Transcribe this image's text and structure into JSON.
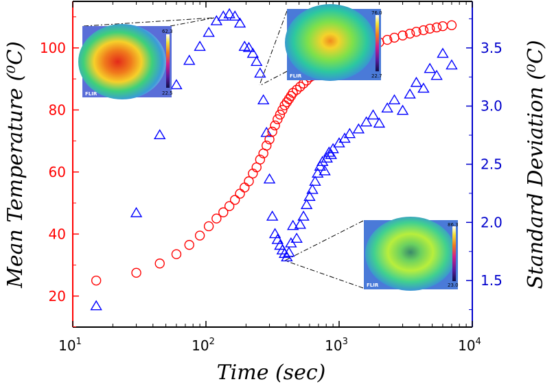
{
  "chart_data": {
    "type": "scatter",
    "xlabel": "Time (sec)",
    "ylabel_left": "Mean Temperature (⁰C)",
    "ylabel_right": "Standard Deviation (⁰C)",
    "x_scale": "log",
    "xlim": [
      10,
      10000
    ],
    "ylim_left": [
      10,
      115
    ],
    "ylim_right": [
      1.1,
      3.9
    ],
    "x_ticks": [
      {
        "value": 10,
        "base": "10",
        "exp": "1"
      },
      {
        "value": 100,
        "base": "10",
        "exp": "2"
      },
      {
        "value": 1000,
        "base": "10",
        "exp": "3"
      },
      {
        "value": 10000,
        "base": "10",
        "exp": "4"
      }
    ],
    "y_left_ticks": [
      "20",
      "40",
      "60",
      "80",
      "100"
    ],
    "y_right_ticks": [
      "1.5",
      "2.0",
      "2.5",
      "3.0",
      "3.5"
    ],
    "grid": false,
    "colors": {
      "left_axis": "#ff0000",
      "right_axis": "#0000cc",
      "series_mean": "#ff0000",
      "series_std": "#0000ff"
    },
    "series": [
      {
        "axis": "left",
        "marker": "circle",
        "x": [
          15,
          30,
          45,
          60,
          75,
          90,
          105,
          120,
          135,
          150,
          165,
          180,
          195,
          210,
          225,
          240,
          255,
          270,
          285,
          300,
          315,
          330,
          345,
          360,
          375,
          390,
          405,
          420,
          435,
          450,
          480,
          510,
          540,
          570,
          600,
          630,
          660,
          690,
          720,
          750,
          780,
          810,
          840,
          870,
          900,
          1000,
          1100,
          1200,
          1400,
          1600,
          1800,
          2000,
          2300,
          2600,
          3000,
          3400,
          3800,
          4300,
          4800,
          5400,
          6000,
          7000
        ],
        "y": [
          25,
          27.5,
          30.5,
          33.5,
          36.5,
          39.5,
          42.5,
          45,
          47,
          49,
          51,
          53,
          55,
          57,
          59.5,
          61.5,
          64,
          66,
          68.5,
          70.5,
          73,
          75,
          77,
          78.5,
          80,
          81.5,
          82.5,
          83.5,
          84.5,
          85.5,
          86.5,
          87.5,
          88.5,
          89.5,
          90.5,
          91,
          91.5,
          92.3,
          92.8,
          93.3,
          93.8,
          94.3,
          94.8,
          95.3,
          95.8,
          96.6,
          97.3,
          98,
          99,
          100,
          101,
          101.8,
          102.6,
          103.3,
          104,
          104.6,
          105.2,
          105.7,
          106.2,
          106.6,
          107,
          107.3
        ]
      },
      {
        "axis": "right",
        "marker": "triangle",
        "x": [
          15,
          30,
          45,
          60,
          75,
          90,
          105,
          120,
          135,
          150,
          165,
          180,
          195,
          210,
          225,
          240,
          255,
          270,
          285,
          300,
          315,
          330,
          345,
          360,
          375,
          390,
          405,
          420,
          435,
          450,
          480,
          510,
          540,
          570,
          600,
          630,
          660,
          690,
          720,
          750,
          780,
          810,
          840,
          870,
          900,
          1000,
          1100,
          1200,
          1400,
          1600,
          1800,
          2000,
          2300,
          2600,
          3000,
          3400,
          3800,
          4300,
          4800,
          5400,
          6000,
          7000
        ],
        "y": [
          1.28,
          2.08,
          2.75,
          3.18,
          3.39,
          3.51,
          3.63,
          3.73,
          3.77,
          3.79,
          3.77,
          3.71,
          3.51,
          3.5,
          3.45,
          3.38,
          3.28,
          3.05,
          2.77,
          2.37,
          2.05,
          1.9,
          1.85,
          1.8,
          1.76,
          1.73,
          1.7,
          1.74,
          1.82,
          1.97,
          1.86,
          1.98,
          2.05,
          2.15,
          2.22,
          2.28,
          2.35,
          2.42,
          2.48,
          2.52,
          2.44,
          2.55,
          2.6,
          2.58,
          2.63,
          2.68,
          2.72,
          2.76,
          2.8,
          2.86,
          2.92,
          2.85,
          2.98,
          3.05,
          2.96,
          3.1,
          3.2,
          3.15,
          3.32,
          3.26,
          3.45,
          3.35
        ]
      }
    ],
    "insets": [
      {
        "scale_max": "62.3",
        "scale_min": "22.5",
        "brand": "FLIR"
      },
      {
        "scale_max": "76.0",
        "scale_min": "22.7",
        "brand": "FLIR"
      },
      {
        "scale_max": "86.3",
        "scale_min": "23.0",
        "brand": "FLIR"
      }
    ]
  }
}
